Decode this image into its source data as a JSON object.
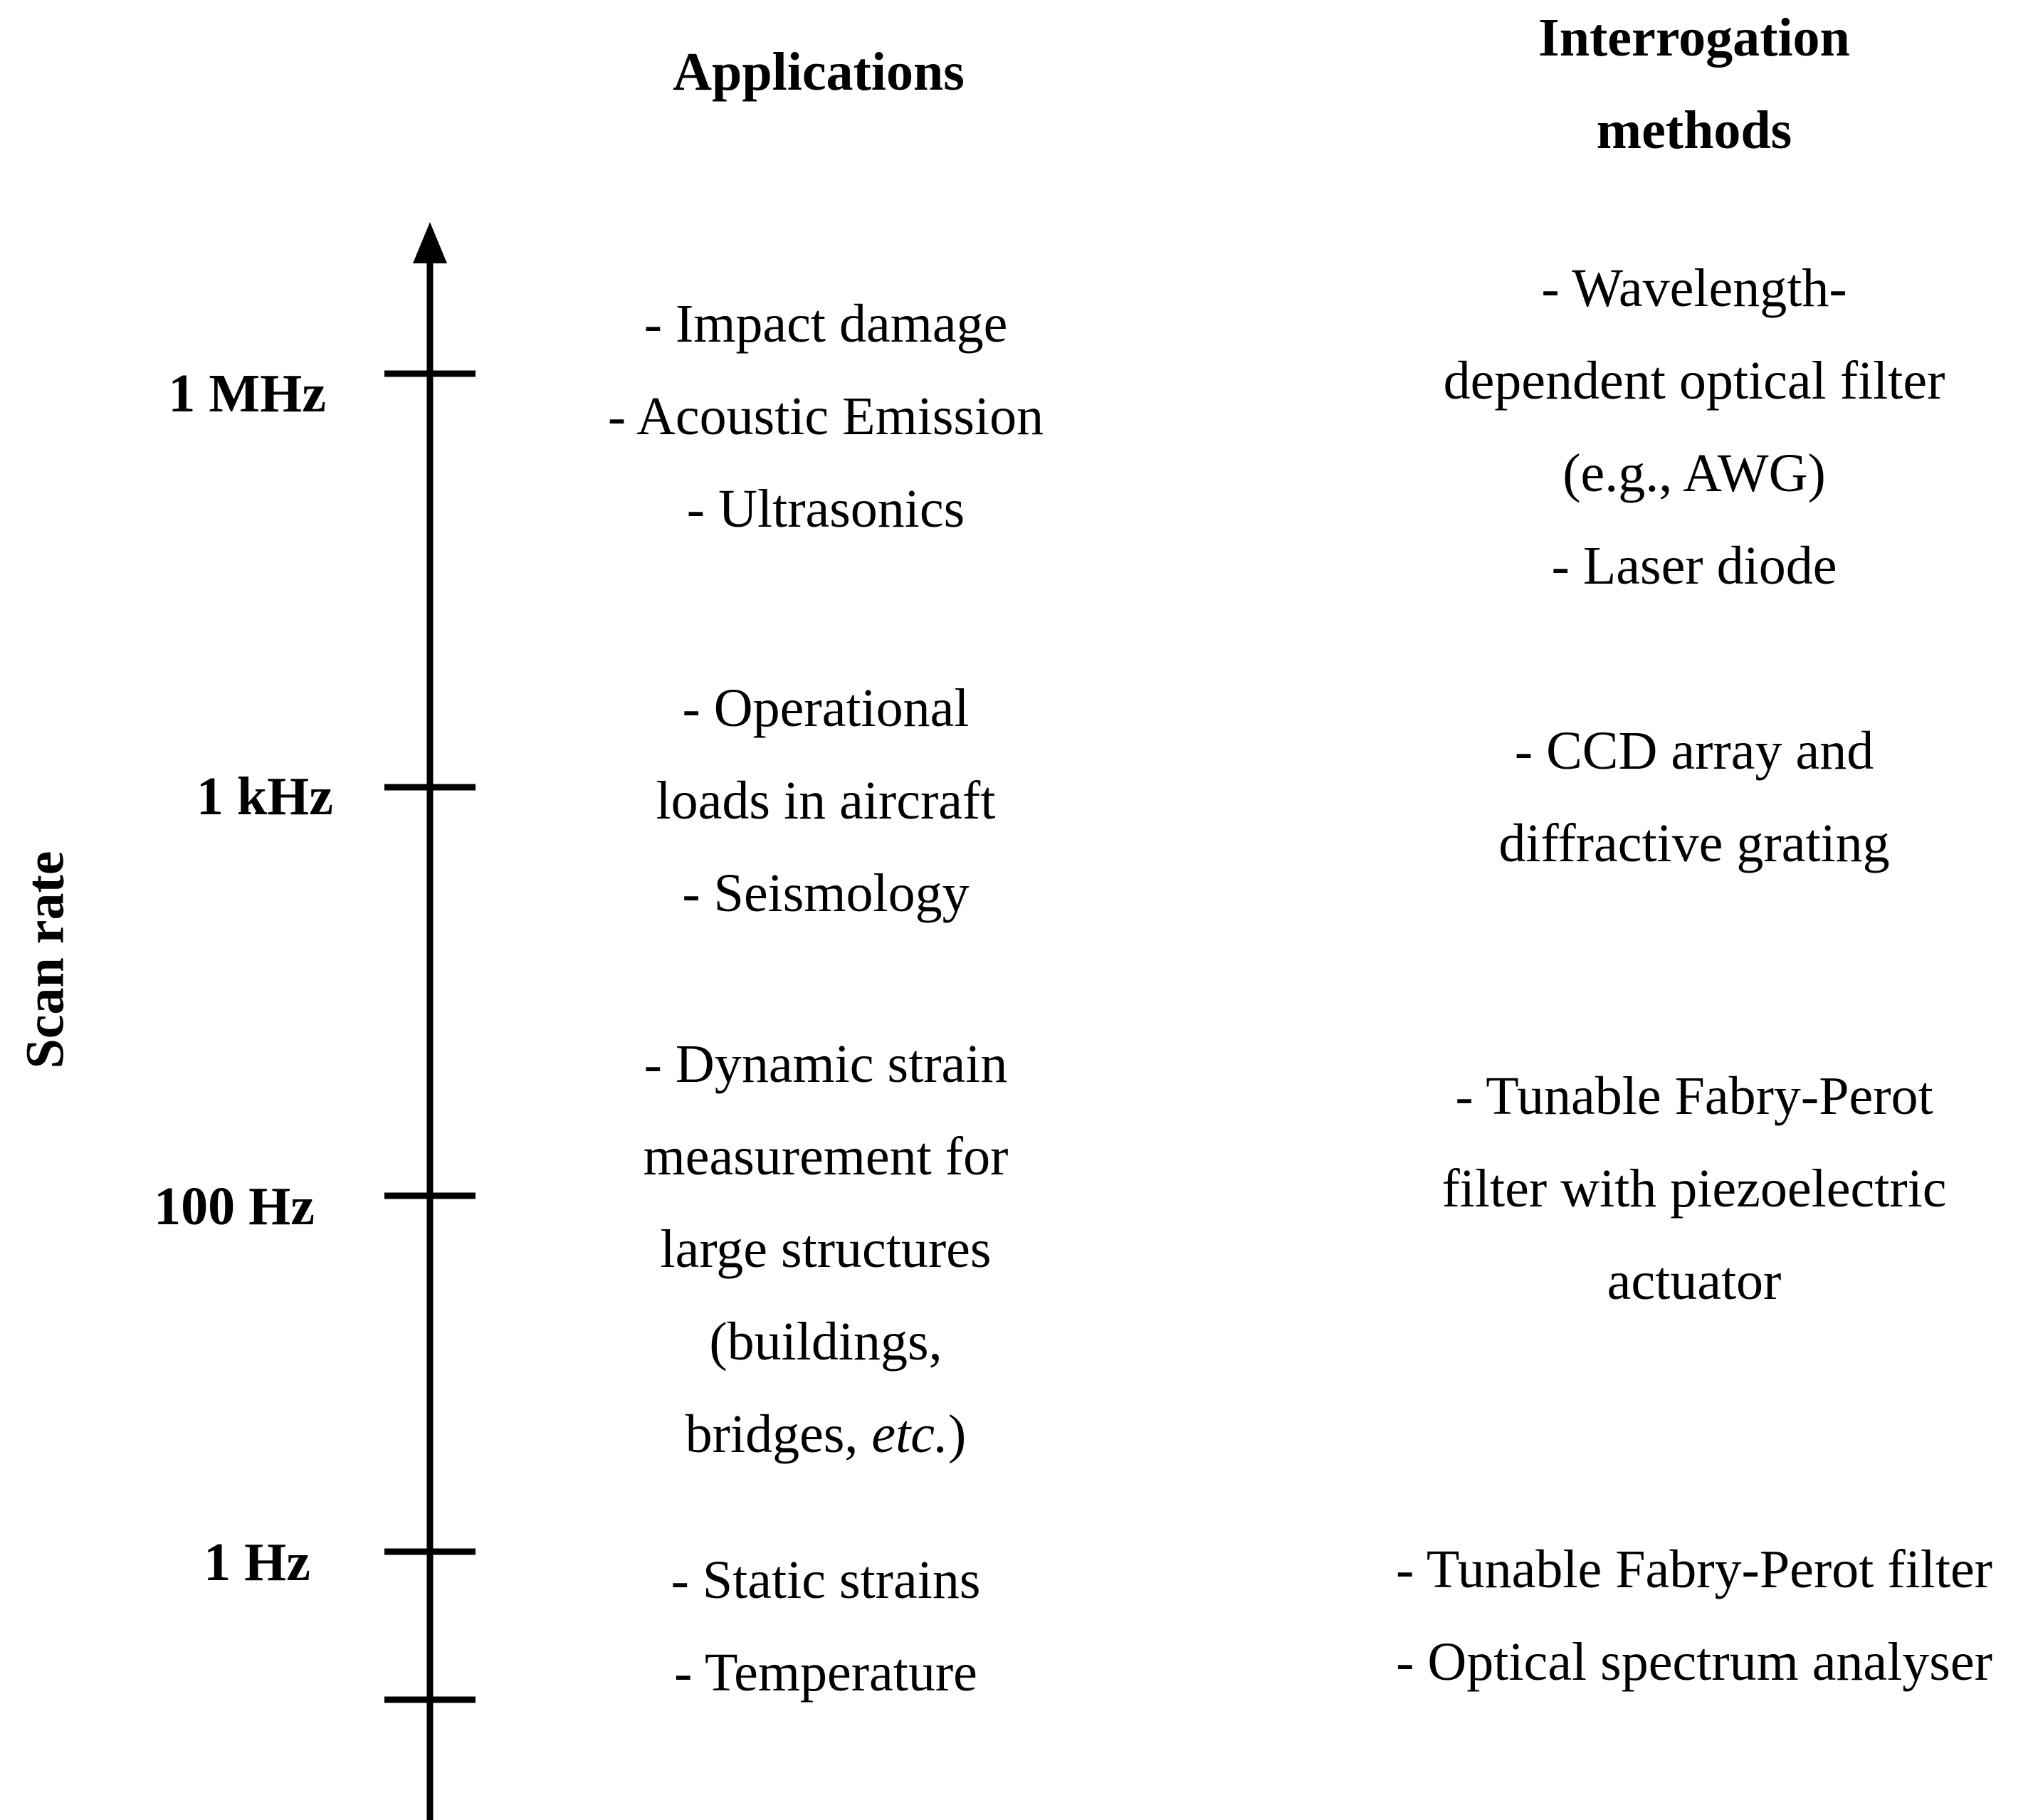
{
  "headings": {
    "applications": "Applications",
    "interrogation_line1": "Interrogation",
    "interrogation_line2": "methods"
  },
  "axis": {
    "title": "Scan rate",
    "ticks": [
      "1 MHz",
      "1 kHz",
      "100 Hz",
      "1 Hz"
    ]
  },
  "applications": [
    [
      "- Impact damage",
      "- Acoustic Emission",
      "- Ultrasonics"
    ],
    [
      "- Operational",
      "loads in aircraft",
      "- Seismology"
    ],
    [
      "- Dynamic strain",
      "measurement for",
      "large structures",
      "(buildings,",
      "bridges, etc.)"
    ],
    [
      "- Static strains",
      "- Temperature"
    ]
  ],
  "methods": [
    [
      "- Wavelength-",
      "dependent optical filter",
      "(e.g., AWG)",
      "- Laser diode"
    ],
    [
      "- CCD array and",
      "diffractive grating"
    ],
    [
      "- Tunable Fabry-Perot",
      "filter with piezoelectric",
      "actuator"
    ],
    [
      "- Tunable Fabry-Perot filter",
      "- Optical spectrum analyser"
    ]
  ]
}
